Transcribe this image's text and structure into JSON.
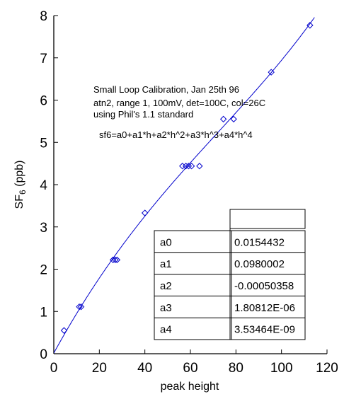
{
  "chart_data": {
    "type": "scatter",
    "xlabel": "peak height",
    "ylabel_main": "SF",
    "ylabel_sub": "6",
    "ylabel_unit": " (ppb)",
    "xlim": [
      0,
      120
    ],
    "ylim": [
      0,
      8
    ],
    "xticks": [
      0,
      20,
      40,
      60,
      80,
      100,
      120
    ],
    "yticks": [
      0,
      1,
      2,
      3,
      4,
      5,
      6,
      7,
      8
    ],
    "grid": false,
    "annotation_lines": [
      "Small Loop Calibration, Jan 25th 96",
      "atn2, range 1, 100mV, det=100C, col=26C",
      "using Phil's 1.1 standard"
    ],
    "formula": "sf6=a0+a1*h+a2*h^2+a3*h^3+a4*h^4",
    "points": [
      {
        "x": 4.5,
        "y": 0.55
      },
      {
        "x": 11.2,
        "y": 1.11
      },
      {
        "x": 12.0,
        "y": 1.11
      },
      {
        "x": 26.0,
        "y": 2.22
      },
      {
        "x": 27.0,
        "y": 2.22
      },
      {
        "x": 27.8,
        "y": 2.22
      },
      {
        "x": 40.0,
        "y": 3.33
      },
      {
        "x": 56.5,
        "y": 4.44
      },
      {
        "x": 58.0,
        "y": 4.44
      },
      {
        "x": 59.2,
        "y": 4.44
      },
      {
        "x": 60.5,
        "y": 4.44
      },
      {
        "x": 64.0,
        "y": 4.44
      },
      {
        "x": 74.5,
        "y": 5.55
      },
      {
        "x": 79.0,
        "y": 5.55
      },
      {
        "x": 95.5,
        "y": 6.66
      },
      {
        "x": 112.5,
        "y": 7.77
      }
    ],
    "fit": {
      "coefficients": [
        0.0154432,
        0.0980002,
        -0.00050358,
        1.80812e-06,
        3.53464e-09
      ],
      "x_range": [
        0,
        114.5
      ]
    },
    "table": {
      "header": [
        "",
        ""
      ],
      "rows": [
        [
          "a0",
          "0.0154432"
        ],
        [
          "a1",
          "0.0980002"
        ],
        [
          "a2",
          "-0.00050358"
        ],
        [
          "a3",
          "1.80812E-06"
        ],
        [
          "a4",
          "3.53464E-09"
        ]
      ]
    },
    "colors": {
      "series": "#0000cc",
      "axes": "#000000",
      "background": "#ffffff"
    }
  }
}
